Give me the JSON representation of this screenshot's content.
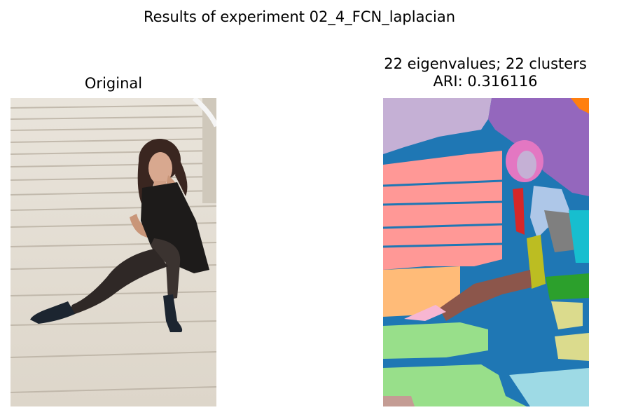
{
  "figure": {
    "suptitle": "Results of experiment 02_4_FCN_laplacian"
  },
  "left_panel": {
    "title": "Original"
  },
  "right_panel": {
    "title_line1": "22 eigenvalues; 22 clusters",
    "title_line2": "ARI: 0.316116"
  },
  "colors": {
    "background": "#ffffff",
    "tab_blue": "#1f77b4",
    "tab_pink_light": "#ff9896",
    "tab_purple_light": "#c5b0d5",
    "tab_purple": "#9467bd",
    "tab_green_light": "#98df8a",
    "tab_green": "#2ca02c",
    "tab_orange_light": "#ffbb78",
    "tab_orange": "#ff7f0e",
    "tab_red": "#d62728",
    "tab_brown": "#8c564b",
    "tab_brown_light": "#c49c94",
    "tab_pink": "#e377c2",
    "tab_pink_pale": "#f7b6d2",
    "tab_gray": "#7f7f7f",
    "tab_olive": "#bcbd22",
    "tab_olive_light": "#dbdb8d",
    "tab_cyan": "#17becf",
    "tab_cyan_light": "#9edae5",
    "tab_blue_light": "#aec7e8"
  }
}
